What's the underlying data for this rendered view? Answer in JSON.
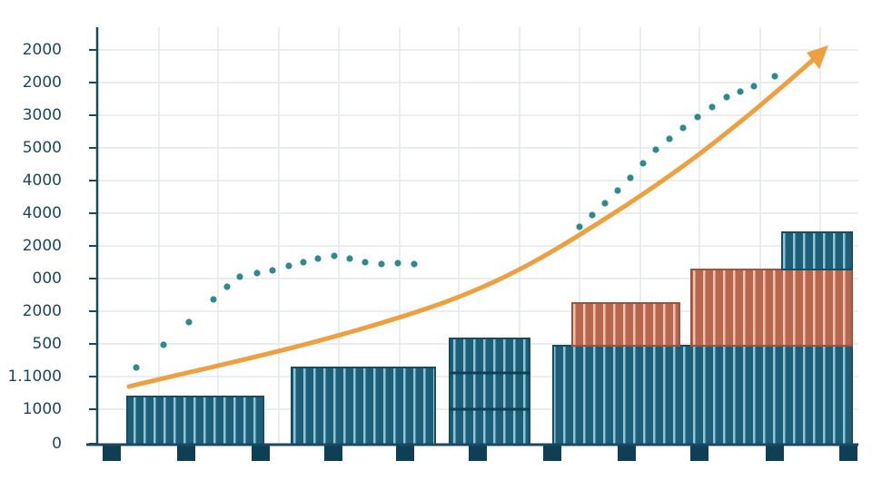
{
  "axis_labels": [
    "2000",
    "2000",
    "3000",
    "5000",
    "4000",
    "4000",
    "2000",
    "000",
    "2000",
    "500",
    "1.1000",
    "1000",
    "0"
  ]
}
